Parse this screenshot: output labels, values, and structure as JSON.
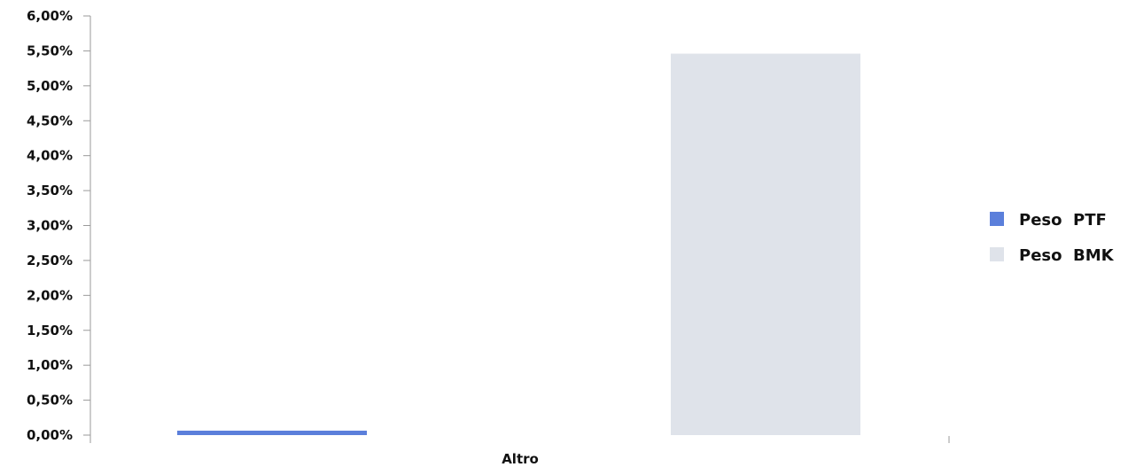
{
  "chart_data": {
    "type": "bar",
    "categories": [
      "Altro"
    ],
    "series": [
      {
        "name": "Peso  PTF",
        "values": [
          0.06
        ],
        "color": "#5b7fdb"
      },
      {
        "name": "Peso  BMK",
        "values": [
          5.46
        ],
        "color": "#dfe3ea"
      }
    ],
    "ylim": [
      0,
      6
    ],
    "yticks": [
      "0,00%",
      "0,50%",
      "1,00%",
      "1,50%",
      "2,00%",
      "2,50%",
      "3,00%",
      "3,50%",
      "4,00%",
      "4,50%",
      "5,00%",
      "5,50%",
      "6,00%"
    ],
    "ytick_values": [
      0,
      0.5,
      1,
      1.5,
      2,
      2.5,
      3,
      3.5,
      4,
      4.5,
      5,
      5.5,
      6
    ],
    "grid": false,
    "legend_position": "right",
    "title": "",
    "xlabel": "",
    "ylabel": ""
  }
}
